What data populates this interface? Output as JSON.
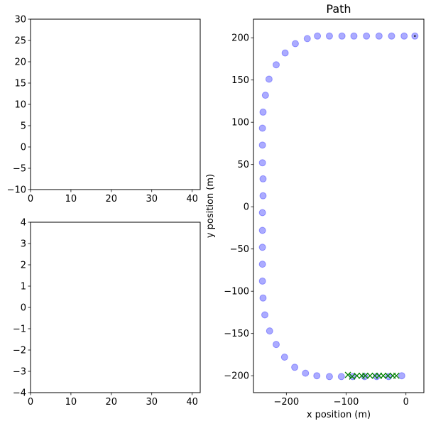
{
  "chart_data": [
    {
      "type": "line",
      "title": "",
      "xlabel": "",
      "ylabel": "",
      "xlim": [
        0,
        42
      ],
      "ylim": [
        -10,
        30
      ],
      "xticks": [
        0,
        10,
        20,
        30,
        40
      ],
      "yticks": [
        -10,
        -5,
        0,
        5,
        10,
        15,
        20,
        25,
        30
      ],
      "series": []
    },
    {
      "type": "line",
      "title": "",
      "xlabel": "",
      "ylabel": "",
      "xlim": [
        0,
        42
      ],
      "ylim": [
        -4,
        4
      ],
      "xticks": [
        0,
        10,
        20,
        30,
        40
      ],
      "yticks": [
        -4,
        -3,
        -2,
        -1,
        0,
        1,
        2,
        3,
        4
      ],
      "series": []
    },
    {
      "type": "scatter",
      "title": "Path",
      "xlabel": "x position (m)",
      "ylabel": "y position (m)",
      "xlim": [
        -255,
        30
      ],
      "ylim": [
        -220,
        222
      ],
      "xticks": [
        -200,
        -100,
        0
      ],
      "yticks": [
        -200,
        -150,
        -100,
        -50,
        0,
        50,
        100,
        150,
        200
      ],
      "grid": false,
      "series": [
        {
          "marker": "circle",
          "color": "#0000ff",
          "alpha": 0.33,
          "points": [
            [
              15,
              202
            ],
            [
              -3,
              202
            ],
            [
              -24,
              202
            ],
            [
              -45,
              202
            ],
            [
              -66,
              202
            ],
            [
              -87,
              202
            ],
            [
              -107,
              202
            ],
            [
              -128,
              202
            ],
            [
              -148,
              202
            ],
            [
              -165,
              199
            ],
            [
              -185,
              193
            ],
            [
              -202,
              182
            ],
            [
              -217,
              168
            ],
            [
              -229,
              151
            ],
            [
              -235,
              132
            ],
            [
              -239,
              112
            ],
            [
              -240,
              93
            ],
            [
              -240,
              73
            ],
            [
              -240,
              52
            ],
            [
              -239,
              33
            ],
            [
              -239,
              13
            ],
            [
              -240,
              -7
            ],
            [
              -240,
              -28
            ],
            [
              -240,
              -48
            ],
            [
              -240,
              -68
            ],
            [
              -240,
              -88
            ],
            [
              -239,
              -108
            ],
            [
              -236,
              -128
            ],
            [
              -228,
              -147
            ],
            [
              -217,
              -163
            ],
            [
              -203,
              -178
            ],
            [
              -186,
              -190
            ],
            [
              -168,
              -197
            ],
            [
              -149,
              -200
            ],
            [
              -128,
              -201
            ],
            [
              -108,
              -201
            ],
            [
              -89,
              -201
            ],
            [
              -69,
              -201
            ],
            [
              -49,
              -201
            ],
            [
              -29,
              -201
            ],
            [
              -7,
              -200
            ]
          ]
        },
        {
          "marker": "x",
          "color": "#008000",
          "points": [
            [
              -97,
              -199
            ],
            [
              -90,
              -201
            ],
            [
              -82,
              -200
            ],
            [
              -74,
              -200
            ],
            [
              -68,
              -200
            ],
            [
              -60,
              -200
            ],
            [
              -52,
              -200
            ],
            [
              -45,
              -200
            ],
            [
              -38,
              -200
            ],
            [
              -30,
              -200
            ],
            [
              -22,
              -200
            ],
            [
              -16,
              -200
            ]
          ]
        },
        {
          "marker": "point",
          "color": "#000000",
          "points": [
            [
              15,
              202
            ]
          ]
        }
      ]
    }
  ]
}
